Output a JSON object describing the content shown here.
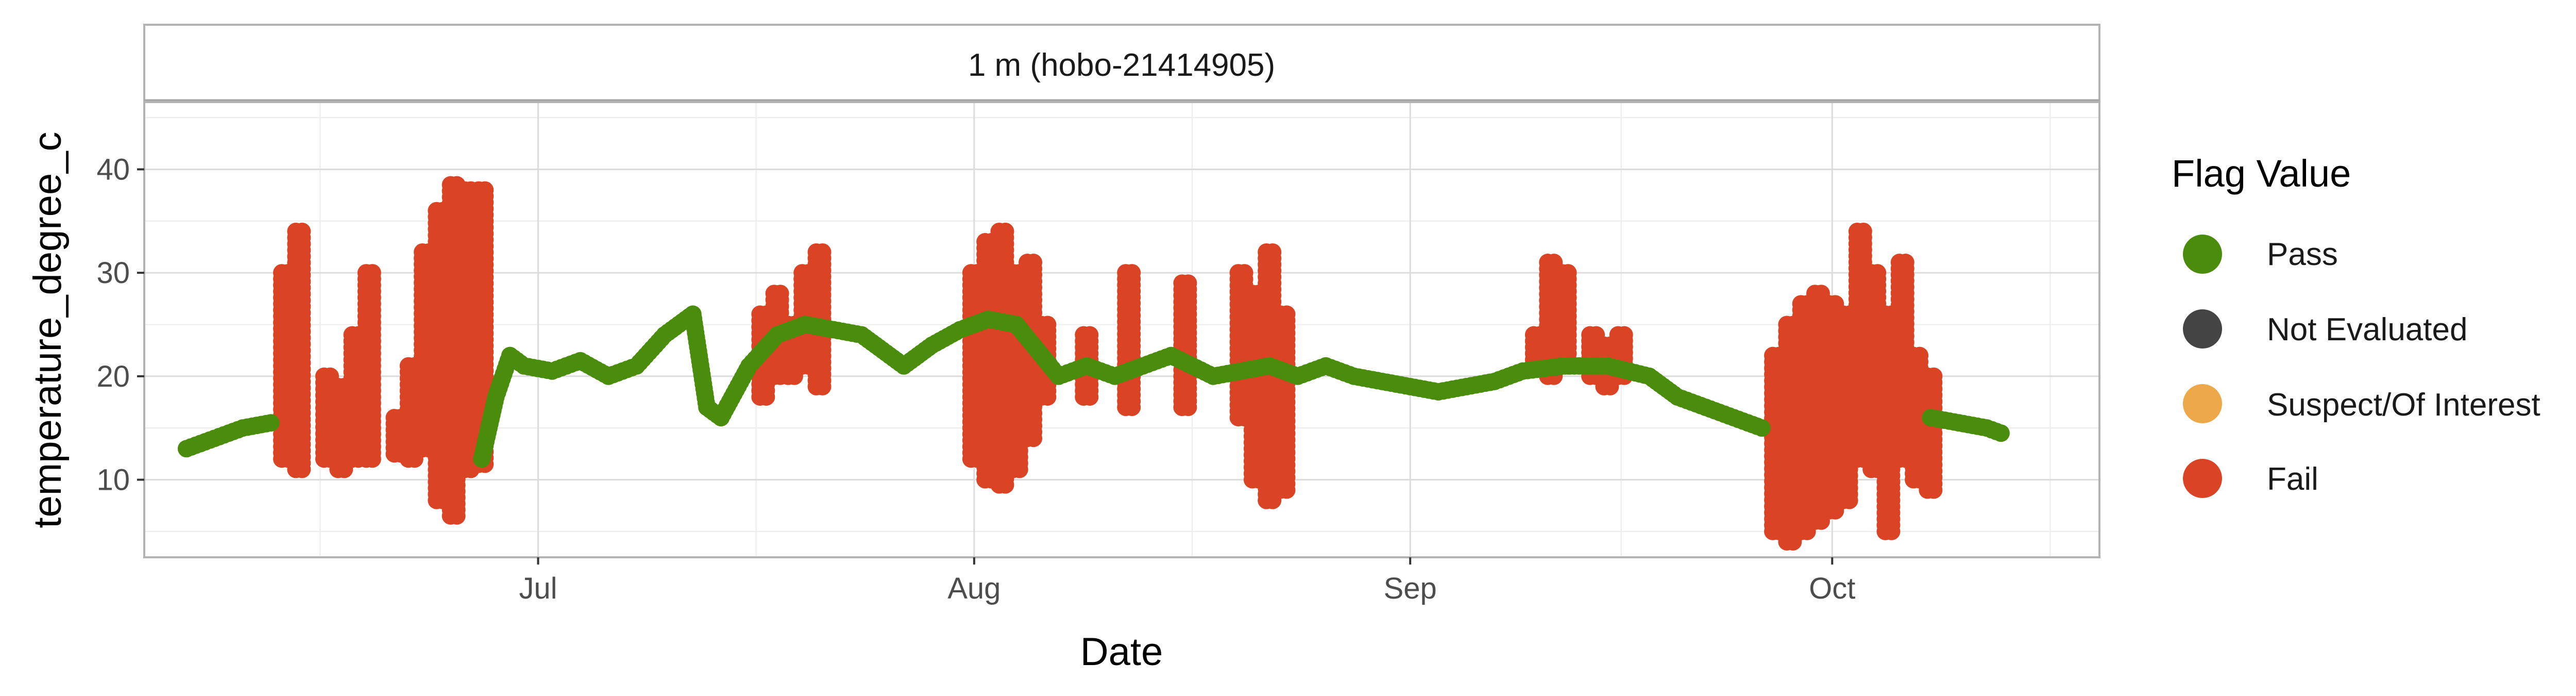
{
  "chart_data": {
    "type": "scatter",
    "panel_title": "1 m (hobo-21414905)",
    "xlabel": "Date",
    "ylabel": "temperature_degree_c",
    "x_ticks": [
      {
        "label": "Jul",
        "date": "2024-07-01"
      },
      {
        "label": "Aug",
        "date": "2024-08-01"
      },
      {
        "label": "Sep",
        "date": "2024-09-01"
      },
      {
        "label": "Oct",
        "date": "2024-10-01"
      }
    ],
    "xlim": [
      "2024-06-03",
      "2024-10-20"
    ],
    "y_ticks": [
      10,
      20,
      30,
      40
    ],
    "ylim": [
      2.5,
      46.5
    ],
    "legend": {
      "title": "Flag Value",
      "position": "right",
      "entries": [
        {
          "label": "Pass",
          "color": "#4a8c0c"
        },
        {
          "label": "Not Evaluated",
          "color": "#444444"
        },
        {
          "label": "Suspect/Of Interest",
          "color": "#eda84a"
        },
        {
          "label": "Fail",
          "color": "#db4325"
        }
      ]
    },
    "series": [
      {
        "name": "Pass",
        "color": "#4a8c0c",
        "points": [
          [
            "2024-06-06",
            13.0
          ],
          [
            "2024-06-08",
            14.0
          ],
          [
            "2024-06-10",
            15.0
          ],
          [
            "2024-06-12",
            15.5
          ],
          [
            "2024-06-27",
            12.0
          ],
          [
            "2024-06-28",
            18.0
          ],
          [
            "2024-06-29",
            22.0
          ],
          [
            "2024-06-30",
            21.0
          ],
          [
            "2024-07-02",
            20.5
          ],
          [
            "2024-07-04",
            21.5
          ],
          [
            "2024-07-06",
            20.0
          ],
          [
            "2024-07-08",
            21.0
          ],
          [
            "2024-07-10",
            24.0
          ],
          [
            "2024-07-12",
            26.0
          ],
          [
            "2024-07-13",
            17.0
          ],
          [
            "2024-07-14",
            16.0
          ],
          [
            "2024-07-16",
            21.0
          ],
          [
            "2024-07-18",
            24.0
          ],
          [
            "2024-07-20",
            25.0
          ],
          [
            "2024-07-24",
            24.0
          ],
          [
            "2024-07-26",
            22.0
          ],
          [
            "2024-07-27",
            21.0
          ],
          [
            "2024-07-29",
            23.0
          ],
          [
            "2024-07-31",
            24.5
          ],
          [
            "2024-08-02",
            25.5
          ],
          [
            "2024-08-04",
            25.0
          ],
          [
            "2024-08-07",
            20.0
          ],
          [
            "2024-08-09",
            21.0
          ],
          [
            "2024-08-11",
            20.0
          ],
          [
            "2024-08-13",
            21.0
          ],
          [
            "2024-08-15",
            22.0
          ],
          [
            "2024-08-18",
            20.0
          ],
          [
            "2024-08-22",
            21.0
          ],
          [
            "2024-08-24",
            20.0
          ],
          [
            "2024-08-26",
            21.0
          ],
          [
            "2024-08-28",
            20.0
          ],
          [
            "2024-08-30",
            19.5
          ],
          [
            "2024-09-01",
            19.0
          ],
          [
            "2024-09-03",
            18.5
          ],
          [
            "2024-09-05",
            19.0
          ],
          [
            "2024-09-07",
            19.5
          ],
          [
            "2024-09-09",
            20.5
          ],
          [
            "2024-09-12",
            21.0
          ],
          [
            "2024-09-15",
            21.0
          ],
          [
            "2024-09-18",
            20.0
          ],
          [
            "2024-09-20",
            18.0
          ],
          [
            "2024-09-22",
            17.0
          ],
          [
            "2024-09-24",
            16.0
          ],
          [
            "2024-09-26",
            15.0
          ],
          [
            "2024-10-08",
            16.0
          ],
          [
            "2024-10-10",
            15.5
          ],
          [
            "2024-10-12",
            15.0
          ],
          [
            "2024-10-13",
            14.5
          ]
        ]
      },
      {
        "name": "Fail",
        "color": "#db4325",
        "spikes": [
          [
            "2024-06-13",
            12.0,
            30.0
          ],
          [
            "2024-06-14",
            11.0,
            34.0
          ],
          [
            "2024-06-16",
            12.0,
            20.0
          ],
          [
            "2024-06-17",
            11.0,
            19.0
          ],
          [
            "2024-06-18",
            12.0,
            24.0
          ],
          [
            "2024-06-19",
            12.0,
            30.0
          ],
          [
            "2024-06-21",
            12.5,
            16.0
          ],
          [
            "2024-06-22",
            12.0,
            21.0
          ],
          [
            "2024-06-23",
            13.0,
            32.0
          ],
          [
            "2024-06-24",
            8.0,
            36.0
          ],
          [
            "2024-06-25",
            6.5,
            38.5
          ],
          [
            "2024-06-26",
            11.0,
            38.0
          ],
          [
            "2024-06-27",
            11.5,
            38.0
          ],
          [
            "2024-07-17",
            18.0,
            26.0
          ],
          [
            "2024-07-18",
            20.0,
            28.0
          ],
          [
            "2024-07-19",
            20.0,
            25.0
          ],
          [
            "2024-07-20",
            21.0,
            30.0
          ],
          [
            "2024-07-21",
            19.0,
            32.0
          ],
          [
            "2024-08-01",
            12.0,
            30.0
          ],
          [
            "2024-08-02",
            10.0,
            33.0
          ],
          [
            "2024-08-03",
            9.5,
            34.0
          ],
          [
            "2024-08-04",
            11.0,
            30.0
          ],
          [
            "2024-08-05",
            14.0,
            31.0
          ],
          [
            "2024-08-06",
            18.0,
            25.0
          ],
          [
            "2024-08-09",
            18.0,
            24.0
          ],
          [
            "2024-08-12",
            17.0,
            30.0
          ],
          [
            "2024-08-16",
            17.0,
            29.0
          ],
          [
            "2024-08-20",
            16.0,
            30.0
          ],
          [
            "2024-08-21",
            10.0,
            28.0
          ],
          [
            "2024-08-22",
            8.0,
            32.0
          ],
          [
            "2024-08-23",
            9.0,
            26.0
          ],
          [
            "2024-09-10",
            21.0,
            24.0
          ],
          [
            "2024-09-11",
            20.0,
            31.0
          ],
          [
            "2024-09-12",
            21.0,
            30.0
          ],
          [
            "2024-09-14",
            20.0,
            24.0
          ],
          [
            "2024-09-15",
            19.0,
            23.0
          ],
          [
            "2024-09-16",
            20.0,
            24.0
          ],
          [
            "2024-09-27",
            5.0,
            22.0
          ],
          [
            "2024-09-28",
            4.0,
            25.0
          ],
          [
            "2024-09-29",
            5.0,
            27.0
          ],
          [
            "2024-09-30",
            6.0,
            28.0
          ],
          [
            "2024-10-01",
            7.0,
            27.0
          ],
          [
            "2024-10-02",
            8.0,
            26.0
          ],
          [
            "2024-10-03",
            12.0,
            34.0
          ],
          [
            "2024-10-04",
            11.0,
            30.0
          ],
          [
            "2024-10-05",
            5.0,
            26.0
          ],
          [
            "2024-10-06",
            12.0,
            31.0
          ],
          [
            "2024-10-07",
            10.0,
            22.0
          ],
          [
            "2024-10-08",
            9.0,
            20.0
          ]
        ]
      }
    ]
  }
}
